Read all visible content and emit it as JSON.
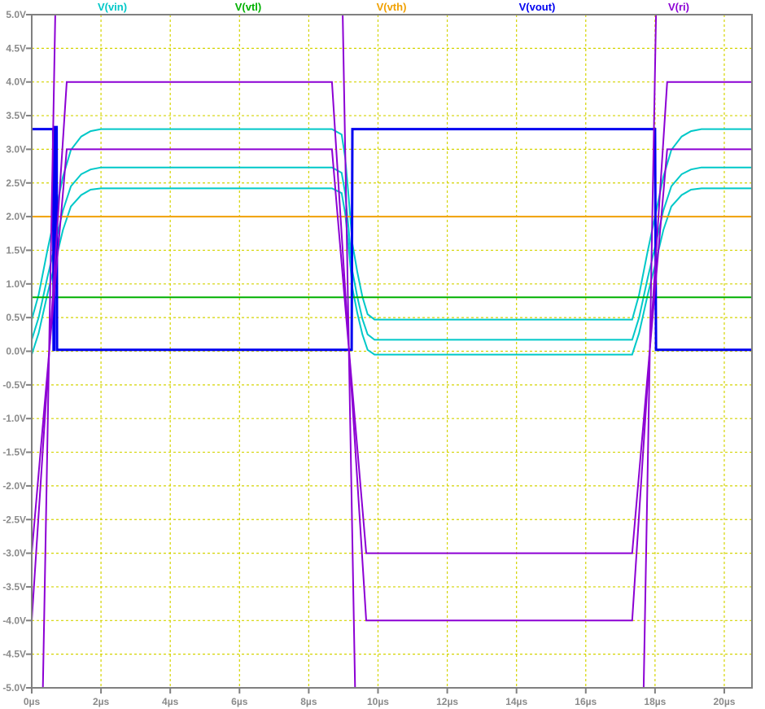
{
  "chart_data": {
    "type": "line",
    "title": "",
    "xlabel": "",
    "ylabel": "",
    "xlim": [
      0,
      20.8
    ],
    "ylim": [
      -5.0,
      5.0
    ],
    "x_unit": "µs",
    "grid": true,
    "legend_placement": "top",
    "x_ticks": [
      "0µs",
      "2µs",
      "4µs",
      "6µs",
      "8µs",
      "10µs",
      "12µs",
      "14µs",
      "16µs",
      "18µs",
      "20µs"
    ],
    "x_tick_values": [
      0,
      2,
      4,
      6,
      8,
      10,
      12,
      14,
      16,
      18,
      20
    ],
    "y_ticks": [
      "5.0V",
      "4.5V",
      "4.0V",
      "3.5V",
      "3.0V",
      "2.5V",
      "2.0V",
      "1.5V",
      "1.0V",
      "0.5V",
      "0.0V",
      "-0.5V",
      "-1.0V",
      "-1.5V",
      "-2.0V",
      "-2.5V",
      "-3.0V",
      "-3.5V",
      "-4.0V",
      "-4.5V",
      "-5.0V"
    ],
    "y_tick_values": [
      5,
      4.5,
      4,
      3.5,
      3,
      2.5,
      2,
      1.5,
      1,
      0.5,
      0,
      -0.5,
      -1,
      -1.5,
      -2,
      -2.5,
      -3,
      -3.5,
      -4,
      -4.5,
      -5
    ],
    "colors": {
      "grid": "#d4d400",
      "axis": "#808080"
    },
    "series": [
      {
        "name": "V(vin)",
        "color": "#00c8c8",
        "traces": [
          [
            [
              0,
              0.47
            ],
            [
              0.2,
              0.84
            ],
            [
              0.45,
              1.49
            ],
            [
              0.66,
              2.0
            ],
            [
              0.9,
              2.59
            ],
            [
              1.13,
              2.99
            ],
            [
              1.43,
              3.19
            ],
            [
              1.7,
              3.27
            ],
            [
              2.0,
              3.3
            ],
            [
              8.67,
              3.3
            ],
            [
              8.95,
              3.22
            ],
            [
              9.05,
              2.88
            ],
            [
              9.15,
              2.31
            ],
            [
              9.26,
              1.6
            ],
            [
              9.4,
              1.18
            ],
            [
              9.55,
              0.81
            ],
            [
              9.7,
              0.55
            ],
            [
              9.9,
              0.47
            ],
            [
              17.34,
              0.47
            ],
            [
              17.54,
              0.84
            ],
            [
              17.79,
              1.49
            ],
            [
              18.0,
              2.0
            ],
            [
              18.24,
              2.59
            ],
            [
              18.47,
              2.99
            ],
            [
              18.77,
              3.19
            ],
            [
              19.04,
              3.27
            ],
            [
              19.34,
              3.3
            ],
            [
              20.8,
              3.3
            ]
          ],
          [
            [
              0,
              0.17
            ],
            [
              0.2,
              0.5
            ],
            [
              0.45,
              1.09
            ],
            [
              0.66,
              1.55
            ],
            [
              0.9,
              2.09
            ],
            [
              1.13,
              2.45
            ],
            [
              1.43,
              2.63
            ],
            [
              1.7,
              2.7
            ],
            [
              2.0,
              2.73
            ],
            [
              8.67,
              2.73
            ],
            [
              8.95,
              2.65
            ],
            [
              9.05,
              2.35
            ],
            [
              9.15,
              1.83
            ],
            [
              9.26,
              1.19
            ],
            [
              9.4,
              0.81
            ],
            [
              9.55,
              0.48
            ],
            [
              9.7,
              0.25
            ],
            [
              9.9,
              0.17
            ],
            [
              17.34,
              0.17
            ],
            [
              17.54,
              0.5
            ],
            [
              17.79,
              1.09
            ],
            [
              18.0,
              1.55
            ],
            [
              18.24,
              2.09
            ],
            [
              18.47,
              2.45
            ],
            [
              18.77,
              2.63
            ],
            [
              19.04,
              2.7
            ],
            [
              19.34,
              2.73
            ],
            [
              20.8,
              2.73
            ]
          ],
          [
            [
              0,
              -0.05
            ],
            [
              0.2,
              0.27
            ],
            [
              0.45,
              0.84
            ],
            [
              0.66,
              1.28
            ],
            [
              0.9,
              1.8
            ],
            [
              1.13,
              2.15
            ],
            [
              1.43,
              2.32
            ],
            [
              1.7,
              2.4
            ],
            [
              2.0,
              2.42
            ],
            [
              8.67,
              2.42
            ],
            [
              8.95,
              2.35
            ],
            [
              9.05,
              2.05
            ],
            [
              9.15,
              1.56
            ],
            [
              9.26,
              0.94
            ],
            [
              9.4,
              0.57
            ],
            [
              9.55,
              0.25
            ],
            [
              9.7,
              0.02
            ],
            [
              9.9,
              -0.05
            ],
            [
              17.34,
              -0.05
            ],
            [
              17.54,
              0.27
            ],
            [
              17.79,
              0.84
            ],
            [
              18.0,
              1.28
            ],
            [
              18.24,
              1.8
            ],
            [
              18.47,
              2.15
            ],
            [
              18.77,
              2.32
            ],
            [
              19.04,
              2.4
            ],
            [
              19.34,
              2.42
            ],
            [
              20.8,
              2.42
            ]
          ]
        ]
      },
      {
        "name": "V(vtl)",
        "color": "#00b000",
        "traces": [
          [
            [
              0,
              0.8
            ],
            [
              20.8,
              0.8
            ]
          ]
        ]
      },
      {
        "name": "V(vth)",
        "color": "#f0a000",
        "traces": [
          [
            [
              0,
              2.0
            ],
            [
              20.8,
              2.0
            ]
          ]
        ]
      },
      {
        "name": "V(vout)",
        "color": "#0000f0",
        "traces": [
          [
            [
              0,
              3.3
            ],
            [
              0.62,
              3.3
            ],
            [
              0.63,
              0.02
            ],
            [
              0.65,
              0.02
            ],
            [
              0.66,
              3.33
            ],
            [
              0.72,
              3.33
            ],
            [
              0.73,
              0.02
            ],
            [
              9.24,
              0.02
            ],
            [
              9.26,
              3.3
            ],
            [
              18.0,
              3.3
            ],
            [
              18.03,
              0.02
            ],
            [
              20.8,
              0.02
            ]
          ]
        ]
      },
      {
        "name": "V(ri)",
        "color": "#8c00d4",
        "traces": [
          [
            [
              0,
              -4
            ],
            [
              1.01,
              4
            ],
            [
              8.67,
              4
            ],
            [
              9.66,
              -4
            ],
            [
              17.34,
              -4
            ],
            [
              18.35,
              4
            ],
            [
              20.8,
              4
            ]
          ],
          [
            [
              0,
              -3
            ],
            [
              1.01,
              3
            ],
            [
              8.67,
              3
            ],
            [
              9.66,
              -3
            ],
            [
              17.34,
              -3
            ],
            [
              18.35,
              3
            ],
            [
              20.8,
              3
            ]
          ],
          [
            [
              0,
              -14
            ],
            [
              1.0,
              14
            ],
            [
              8.66,
              14
            ],
            [
              9.66,
              -14
            ],
            [
              17.35,
              -14
            ],
            [
              18.35,
              14
            ],
            [
              20.8,
              14
            ]
          ]
        ]
      }
    ]
  }
}
